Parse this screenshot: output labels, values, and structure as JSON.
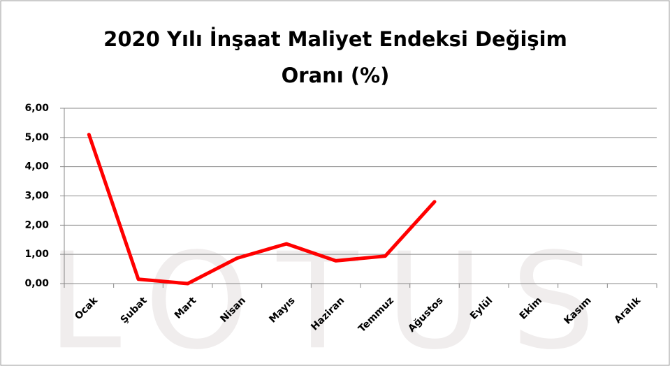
{
  "chart_data": {
    "type": "line",
    "title": "2020 Yılı İnşaat Maliyet Endeksi Değişim Oranı (%)",
    "watermark": "LOTUS",
    "categories": [
      "Ocak",
      "Şubat",
      "Mart",
      "Nisan",
      "Mayıs",
      "Haziran",
      "Temmuz",
      "Ağustos",
      "Eylül",
      "Ekim",
      "Kasım",
      "Aralık"
    ],
    "series": [
      {
        "color": "#ff0000",
        "values": [
          5.1,
          0.15,
          0.0,
          0.87,
          1.36,
          0.78,
          0.94,
          2.8,
          null,
          null,
          null,
          null
        ]
      }
    ],
    "ylim": [
      0,
      6
    ],
    "yticks": [
      {
        "value": 0,
        "label": "0,00"
      },
      {
        "value": 1,
        "label": "1,00"
      },
      {
        "value": 2,
        "label": "2,00"
      },
      {
        "value": 3,
        "label": "3,00"
      },
      {
        "value": 4,
        "label": "4,00"
      },
      {
        "value": 5,
        "label": "5,00"
      },
      {
        "value": 6,
        "label": "6,00"
      }
    ],
    "grid": true
  }
}
